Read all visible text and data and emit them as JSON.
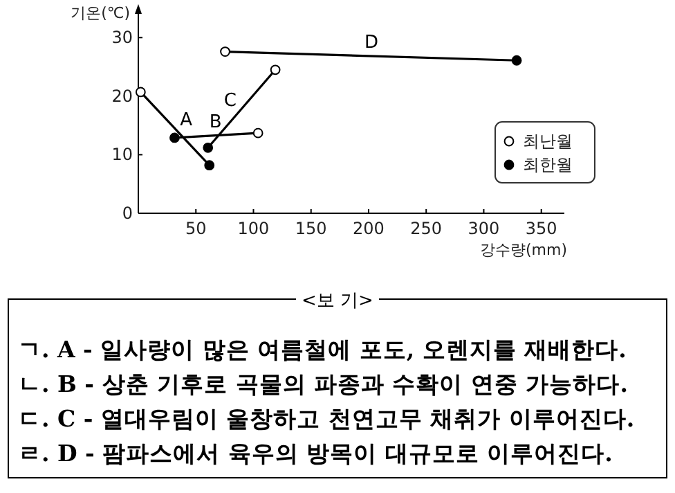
{
  "chart_data": {
    "type": "scatter",
    "xlabel": "강수량(mm)",
    "ylabel": "기온(℃)",
    "xlim": [
      0,
      370
    ],
    "ylim": [
      0,
      35
    ],
    "xticks": [
      50,
      100,
      150,
      200,
      250,
      300,
      350
    ],
    "yticks": [
      0,
      10,
      20,
      30
    ],
    "legend": "right",
    "series": [
      {
        "name": "A",
        "type": "line",
        "marker": "none",
        "color": "#000000",
        "x": [
          2,
          61.7
        ],
        "values": [
          20.7,
          8.2
        ]
      },
      {
        "name": "B",
        "type": "line",
        "marker": "none",
        "color": "#000000",
        "x": [
          31.5,
          104
        ],
        "values": [
          12.9,
          13.7
        ]
      },
      {
        "name": "C",
        "type": "line",
        "marker": "none",
        "color": "#000000",
        "x": [
          60.5,
          119
        ],
        "values": [
          11.2,
          24.5
        ]
      },
      {
        "name": "D",
        "type": "line",
        "marker": "none",
        "color": "#000000",
        "x": [
          75.4,
          328.6
        ],
        "values": [
          27.6,
          26.1
        ]
      },
      {
        "name": "최난월",
        "marker": "circle",
        "color": "#ffffff",
        "x": [
          2,
          104,
          119,
          75.4
        ],
        "values": [
          20.7,
          13.7,
          24.5,
          27.6
        ]
      },
      {
        "name": "최한월",
        "marker": "circle",
        "color": "#000000",
        "x": [
          61.7,
          31.5,
          60.5,
          328.6
        ],
        "values": [
          8.2,
          12.9,
          11.2,
          26.1
        ]
      }
    ],
    "annotations": [
      "<보 기>",
      "ㄱ. A - 일사량이 많은 여름철에 포도, 오렌지를 재배한다.",
      "ㄴ. B - 상춘 기후로 곡물의 파종과 수확이 연중 가능하다.",
      "ㄷ. C - 열대우림이 울창하고 천연고무 채취가 이루어진다.",
      "ㄹ. D - 팜파스에서 육우의 방목이 대규모로 이루어진다."
    ]
  }
}
